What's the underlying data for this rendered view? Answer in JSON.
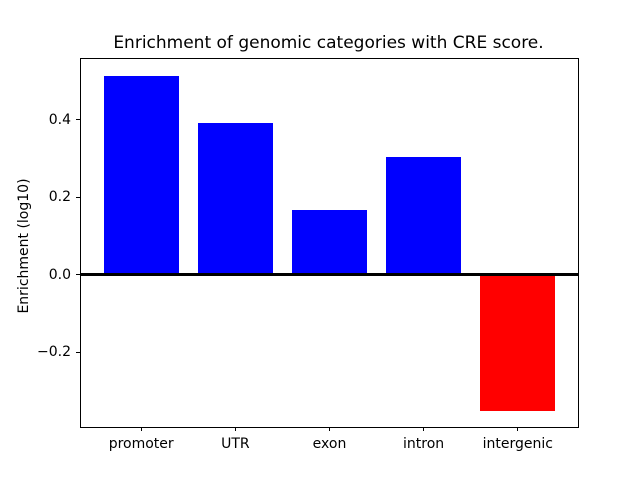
{
  "chart_data": {
    "type": "bar",
    "title": "Enrichment of genomic categories with CRE score.",
    "xlabel": "",
    "ylabel": "Enrichment (log10)",
    "categories": [
      "promoter",
      "UTR",
      "exon",
      "intron",
      "intergenic"
    ],
    "values": [
      0.513,
      0.392,
      0.166,
      0.304,
      -0.351
    ],
    "bar_colors": [
      "#0000ff",
      "#0000ff",
      "#0000ff",
      "#0000ff",
      "#ff0000"
    ],
    "positive_color": "#0000ff",
    "negative_color": "#ff0000",
    "yticks": [
      -0.2,
      0.0,
      0.2,
      0.4
    ],
    "ytick_labels": [
      "−0.2",
      "0.0",
      "0.2",
      "0.4"
    ],
    "ylim": [
      -0.393,
      0.556
    ],
    "xlim": [
      -0.64,
      4.64
    ],
    "bar_width": 0.8,
    "grid": false,
    "zero_line": true,
    "legend_position": "none",
    "background_color": "#ffffff",
    "axis_color": "#000000"
  }
}
